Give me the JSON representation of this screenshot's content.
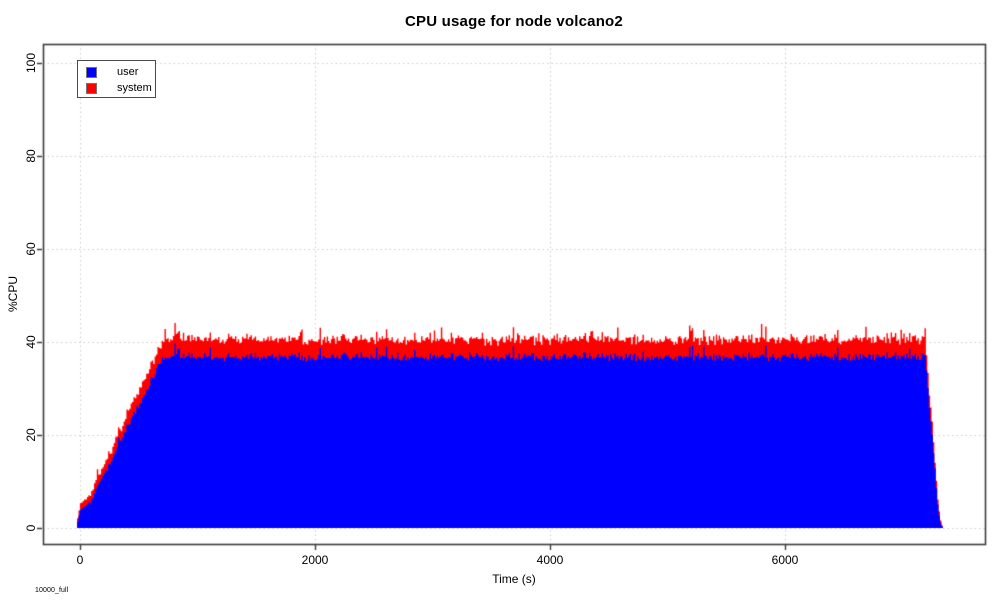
{
  "chart_data": {
    "type": "area",
    "stacked": true,
    "title": "CPU usage for node volcano2",
    "xlabel": "Time (s)",
    "ylabel": "%CPU",
    "footnote": "10000_full",
    "x_ticks": [
      0,
      2000,
      4000,
      6000
    ],
    "y_ticks": [
      0,
      20,
      40,
      60,
      80,
      100
    ],
    "xlim": [
      -315,
      7702
    ],
    "ylim": [
      -3.44,
      104.1
    ],
    "grid": "dotted",
    "legend": {
      "position": "top-left",
      "entries": [
        {
          "label": "user",
          "color": "#0000ff"
        },
        {
          "label": "system",
          "color": "#ff0000"
        }
      ]
    },
    "colors": {
      "user": "#0000ff",
      "system": "#ff0000",
      "grid": "#cccccc",
      "axis": "#3c3c3c",
      "text": "#000000",
      "background": "#ffffff"
    },
    "series": [
      {
        "name": "user",
        "color": "#0000ff",
        "keypoints": [
          [
            -25,
            1.5
          ],
          [
            0,
            4.0
          ],
          [
            80,
            5.5
          ],
          [
            700,
            36.8
          ],
          [
            7190,
            36.8
          ],
          [
            7298,
            4.0
          ],
          [
            7316,
            1.2
          ],
          [
            7336,
            0
          ]
        ]
      },
      {
        "name": "system",
        "color": "#ff0000",
        "stacked_on": "user",
        "keypoints": [
          [
            -25,
            0.7
          ],
          [
            0,
            1.4
          ],
          [
            700,
            3.8
          ],
          [
            7190,
            3.8
          ],
          [
            7312,
            0.8
          ],
          [
            7336,
            0
          ]
        ]
      }
    ],
    "noise": {
      "seed": 1337,
      "step_s": 12,
      "user_amp": 1.1,
      "system_amp": 0.85,
      "user_spike_prob": 0.025,
      "system_spike_prob": 0.03
    },
    "summary": "Stacked CPU utilisation: user ramps from ~2% to ~37% during 0-700 s, holds ~37% (total ~40% with system) until ~7190 s, then falls to 0 by ~7330 s."
  }
}
